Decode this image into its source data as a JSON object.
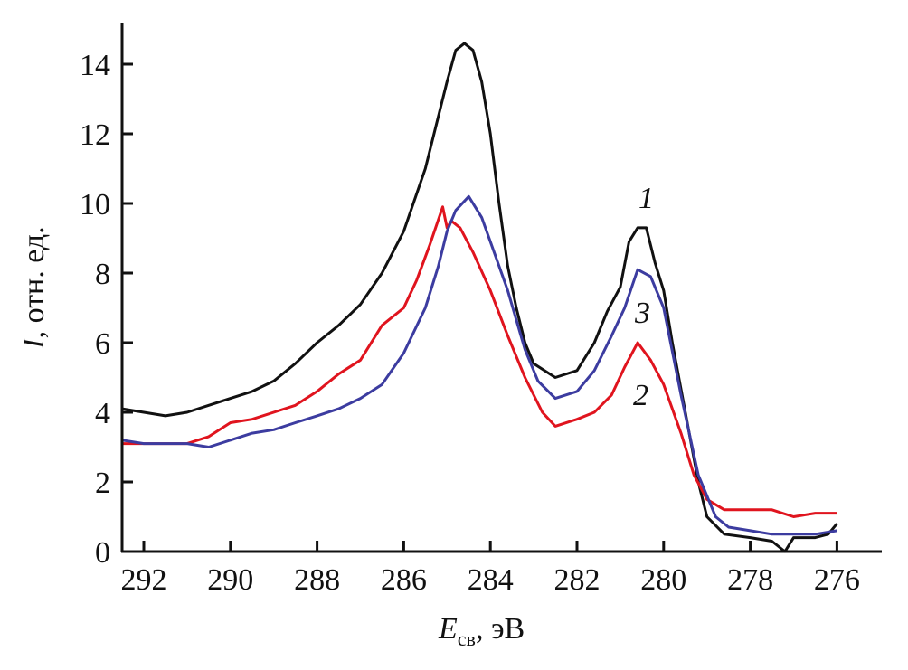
{
  "chart_data": {
    "type": "line",
    "title": "",
    "xlabel": "E",
    "xlabel_sub": "св",
    "xlabel_unit": ", эВ",
    "ylabel": "I",
    "ylabel_unit": ", отн. ед.",
    "xlim": [
      292.5,
      275
    ],
    "x_reversed": true,
    "ylim": [
      0,
      15.2
    ],
    "xticks": [
      "292",
      "290",
      "288",
      "286",
      "284",
      "282",
      "280",
      "278",
      "276"
    ],
    "yticks": [
      "0",
      "2",
      "4",
      "6",
      "8",
      "10",
      "12",
      "14"
    ],
    "grid": false,
    "series": [
      {
        "name": "1",
        "color": "#111111",
        "points": [
          [
            292.5,
            4.1
          ],
          [
            292,
            4.0
          ],
          [
            291.5,
            3.9
          ],
          [
            291,
            4.0
          ],
          [
            290.5,
            4.2
          ],
          [
            290,
            4.4
          ],
          [
            289.5,
            4.6
          ],
          [
            289,
            4.9
          ],
          [
            288.5,
            5.4
          ],
          [
            288,
            6.0
          ],
          [
            287.5,
            6.5
          ],
          [
            287,
            7.1
          ],
          [
            286.5,
            8.0
          ],
          [
            286,
            9.2
          ],
          [
            285.5,
            11.0
          ],
          [
            285.2,
            12.5
          ],
          [
            285,
            13.5
          ],
          [
            284.8,
            14.4
          ],
          [
            284.6,
            14.6
          ],
          [
            284.4,
            14.4
          ],
          [
            284.2,
            13.5
          ],
          [
            284,
            12.0
          ],
          [
            283.8,
            10.0
          ],
          [
            283.6,
            8.2
          ],
          [
            283.4,
            7.0
          ],
          [
            283.2,
            6.0
          ],
          [
            283,
            5.4
          ],
          [
            282.5,
            5.0
          ],
          [
            282,
            5.2
          ],
          [
            281.6,
            6.0
          ],
          [
            281.3,
            6.9
          ],
          [
            281,
            7.6
          ],
          [
            280.8,
            8.9
          ],
          [
            280.6,
            9.3
          ],
          [
            280.4,
            9.3
          ],
          [
            280.2,
            8.3
          ],
          [
            280,
            7.5
          ],
          [
            279.8,
            6.0
          ],
          [
            279.5,
            4.0
          ],
          [
            279.2,
            2.0
          ],
          [
            279,
            1.0
          ],
          [
            278.6,
            0.5
          ],
          [
            278,
            0.4
          ],
          [
            277.5,
            0.3
          ],
          [
            277.2,
            0.0
          ],
          [
            277,
            0.4
          ],
          [
            276.5,
            0.4
          ],
          [
            276.2,
            0.5
          ],
          [
            276,
            0.8
          ]
        ]
      },
      {
        "name": "2",
        "color": "#e0141e",
        "points": [
          [
            292.5,
            3.1
          ],
          [
            292,
            3.1
          ],
          [
            291,
            3.1
          ],
          [
            290.5,
            3.3
          ],
          [
            290,
            3.7
          ],
          [
            289.5,
            3.8
          ],
          [
            289,
            4.0
          ],
          [
            288.5,
            4.2
          ],
          [
            288,
            4.6
          ],
          [
            287.5,
            5.1
          ],
          [
            287,
            5.5
          ],
          [
            286.5,
            6.5
          ],
          [
            286,
            7.0
          ],
          [
            285.7,
            7.8
          ],
          [
            285.4,
            8.8
          ],
          [
            285.1,
            9.9
          ],
          [
            285,
            9.3
          ],
          [
            284.9,
            9.5
          ],
          [
            284.7,
            9.3
          ],
          [
            284.4,
            8.6
          ],
          [
            284,
            7.5
          ],
          [
            283.6,
            6.2
          ],
          [
            283.2,
            5.0
          ],
          [
            282.8,
            4.0
          ],
          [
            282.5,
            3.6
          ],
          [
            282,
            3.8
          ],
          [
            281.6,
            4.0
          ],
          [
            281.2,
            4.5
          ],
          [
            280.9,
            5.3
          ],
          [
            280.6,
            6.0
          ],
          [
            280.3,
            5.5
          ],
          [
            280,
            4.8
          ],
          [
            279.6,
            3.4
          ],
          [
            279.3,
            2.2
          ],
          [
            279,
            1.5
          ],
          [
            278.6,
            1.2
          ],
          [
            278,
            1.2
          ],
          [
            277.5,
            1.2
          ],
          [
            277,
            1.0
          ],
          [
            276.5,
            1.1
          ],
          [
            276,
            1.1
          ]
        ]
      },
      {
        "name": "3",
        "color": "#3c3ca0",
        "points": [
          [
            292.5,
            3.2
          ],
          [
            292,
            3.1
          ],
          [
            291,
            3.1
          ],
          [
            290.5,
            3.0
          ],
          [
            290,
            3.2
          ],
          [
            289.5,
            3.4
          ],
          [
            289,
            3.5
          ],
          [
            288.5,
            3.7
          ],
          [
            288,
            3.9
          ],
          [
            287.5,
            4.1
          ],
          [
            287,
            4.4
          ],
          [
            286.5,
            4.8
          ],
          [
            286,
            5.7
          ],
          [
            285.5,
            7.0
          ],
          [
            285.2,
            8.2
          ],
          [
            285,
            9.2
          ],
          [
            284.8,
            9.8
          ],
          [
            284.5,
            10.2
          ],
          [
            284.2,
            9.6
          ],
          [
            284,
            8.9
          ],
          [
            283.6,
            7.5
          ],
          [
            283.2,
            5.8
          ],
          [
            282.9,
            4.9
          ],
          [
            282.5,
            4.4
          ],
          [
            282,
            4.6
          ],
          [
            281.6,
            5.2
          ],
          [
            281.2,
            6.2
          ],
          [
            280.9,
            7.0
          ],
          [
            280.6,
            8.1
          ],
          [
            280.3,
            7.9
          ],
          [
            280,
            7.0
          ],
          [
            279.6,
            4.5
          ],
          [
            279.2,
            2.2
          ],
          [
            278.8,
            1.0
          ],
          [
            278.5,
            0.7
          ],
          [
            278,
            0.6
          ],
          [
            277.5,
            0.5
          ],
          [
            277,
            0.5
          ],
          [
            276.5,
            0.5
          ],
          [
            276,
            0.6
          ]
        ]
      }
    ]
  }
}
